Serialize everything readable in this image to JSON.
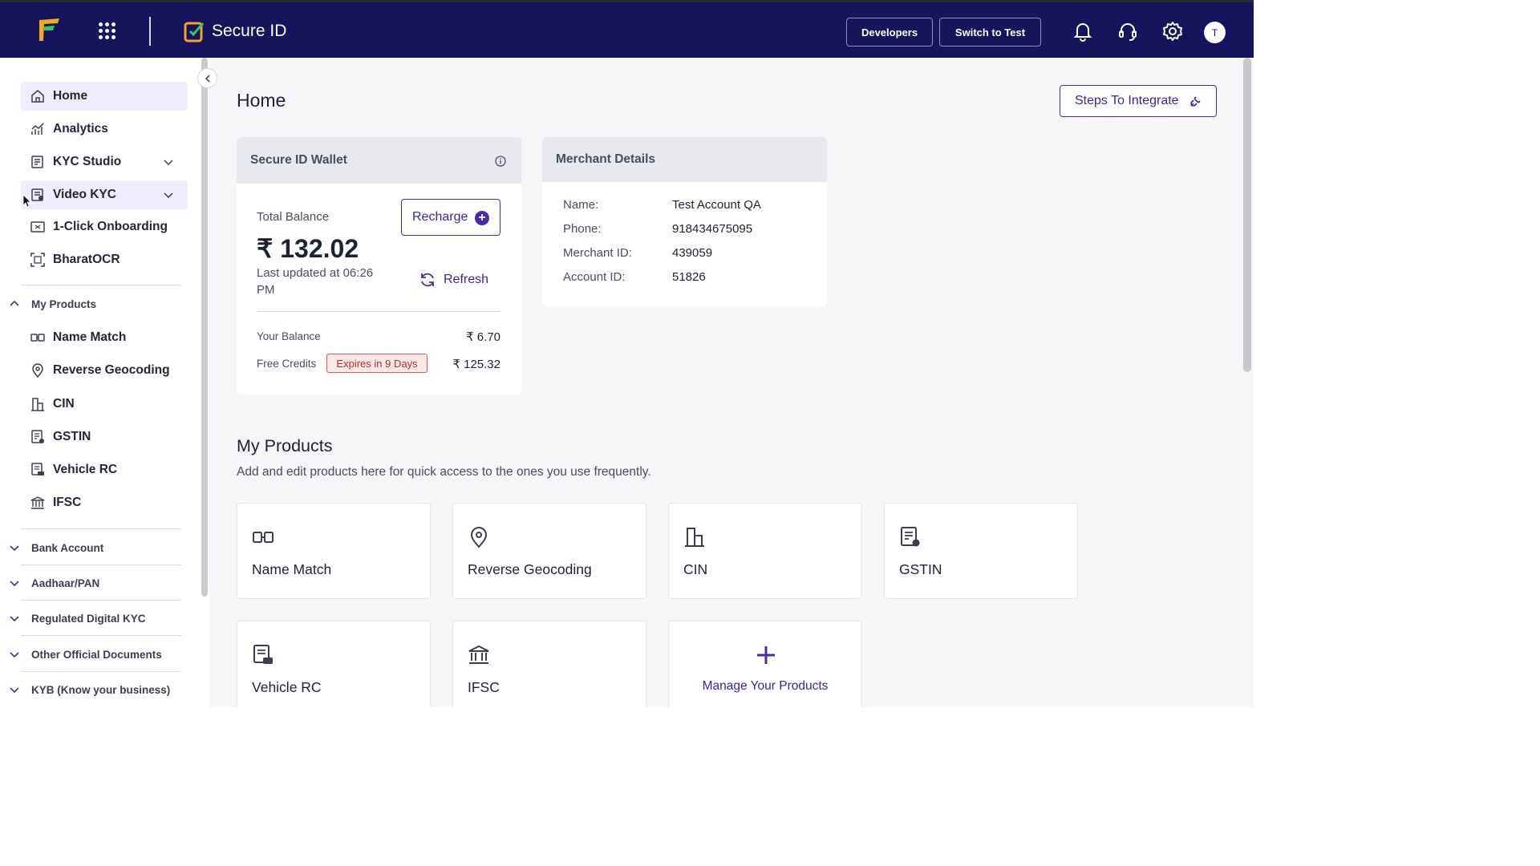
{
  "topbar": {
    "product_title": "Secure ID",
    "developers_label": "Developers",
    "switch_label": "Switch to Test",
    "avatar_initial": "T",
    "icons": [
      "apps-grid-icon",
      "bell-icon",
      "headset-icon",
      "gear-icon"
    ]
  },
  "sidebar": {
    "items": [
      {
        "label": "Home",
        "icon": "home-icon"
      },
      {
        "label": "Analytics",
        "icon": "analytics-icon"
      },
      {
        "label": "KYC Studio",
        "icon": "studio-icon"
      },
      {
        "label": "Video KYC",
        "icon": "video-kyc-icon"
      },
      {
        "label": "1-Click Onboarding",
        "icon": "onboarding-icon"
      },
      {
        "label": "BharatOCR",
        "icon": "ocr-icon"
      }
    ],
    "my_products_label": "My Products",
    "products": [
      {
        "label": "Name Match",
        "icon": "name-match-icon"
      },
      {
        "label": "Reverse Geocoding",
        "icon": "location-pin-icon"
      },
      {
        "label": "CIN",
        "icon": "building-icon"
      },
      {
        "label": "GSTIN",
        "icon": "document-icon"
      },
      {
        "label": "Vehicle RC",
        "icon": "vehicle-icon"
      },
      {
        "label": "IFSC",
        "icon": "bank-icon"
      }
    ],
    "groups": [
      "Bank Account",
      "Aadhaar/PAN",
      "Regulated Digital KYC",
      "Other Official Documents",
      "KYB (Know your business)"
    ]
  },
  "main": {
    "title": "Home",
    "steps_label": "Steps To Integrate",
    "wallet": {
      "title": "Secure ID Wallet",
      "total_balance_label": "Total Balance",
      "recharge_label": "Recharge",
      "balance": "₹ 132.02",
      "updated": "Last updated at 06:26 PM",
      "refresh_label": "Refresh",
      "your_balance_label": "Your Balance",
      "your_balance_value": "₹ 6.70",
      "free_credits_label": "Free Credits",
      "expires_badge": "Expires in 9 Days",
      "free_credits_value": "₹ 125.32"
    },
    "merchant": {
      "title": "Merchant Details",
      "rows": [
        {
          "label": "Name:",
          "value": "Test Account QA"
        },
        {
          "label": "Phone:",
          "value": "918434675095"
        },
        {
          "label": "Merchant ID:",
          "value": "439059"
        },
        {
          "label": "Account ID:",
          "value": "51826"
        }
      ]
    },
    "my_products": {
      "title": "My Products",
      "subtitle": "Add and edit products here for quick access to the ones you use frequently.",
      "tiles": [
        "Name Match",
        "Reverse Geocoding",
        "CIN",
        "GSTIN",
        "Vehicle RC",
        "IFSC"
      ],
      "manage_label": "Manage Your Products"
    }
  },
  "colors": {
    "topbar": "#16145c",
    "accent": "#4b2aa8",
    "badge_red": "#c0292b"
  }
}
